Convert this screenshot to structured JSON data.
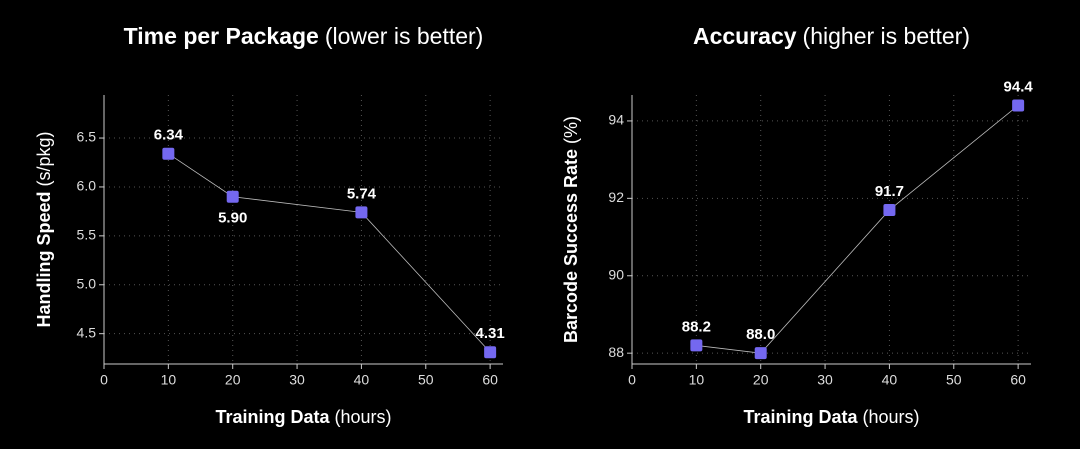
{
  "chart_data": [
    {
      "type": "line",
      "title": "Time per Package",
      "title_note": "(lower is better)",
      "xlabel": "Training Data",
      "xlabel_unit": "(hours)",
      "ylabel": "Handling Speed",
      "ylabel_unit": "(s/pkg)",
      "x": [
        10,
        20,
        40,
        60
      ],
      "series": [
        {
          "color": "#7468f0",
          "values": [
            6.34,
            5.9,
            5.74,
            4.31
          ],
          "value_labels": [
            "6.34",
            "5.90",
            "5.74",
            "4.31"
          ]
        }
      ],
      "xlim": [
        0,
        62
      ],
      "xticks": [
        0,
        10,
        20,
        30,
        40,
        50,
        60
      ],
      "ylim": [
        4.19,
        6.94
      ],
      "yticks": [
        4.5,
        5.0,
        5.5,
        6.0,
        6.5
      ],
      "yticks_labels": [
        "4.5",
        "5.0",
        "5.5",
        "6.0",
        "6.5"
      ],
      "grid": true
    },
    {
      "type": "line",
      "title": "Accuracy",
      "title_note": "(higher is better)",
      "xlabel": "Training Data",
      "xlabel_unit": "(hours)",
      "ylabel": "Barcode Success Rate",
      "ylabel_unit": "(%)",
      "x": [
        10,
        20,
        40,
        60
      ],
      "series": [
        {
          "color": "#7468f0",
          "values": [
            88.2,
            88.0,
            91.7,
            94.4
          ],
          "value_labels": [
            "88.2",
            "88.0",
            "91.7",
            "94.4"
          ]
        }
      ],
      "xlim": [
        0,
        62
      ],
      "xticks": [
        0,
        10,
        20,
        30,
        40,
        50,
        60
      ],
      "ylim": [
        87.72,
        94.67
      ],
      "yticks": [
        88,
        90,
        92,
        94
      ],
      "grid": true
    }
  ]
}
